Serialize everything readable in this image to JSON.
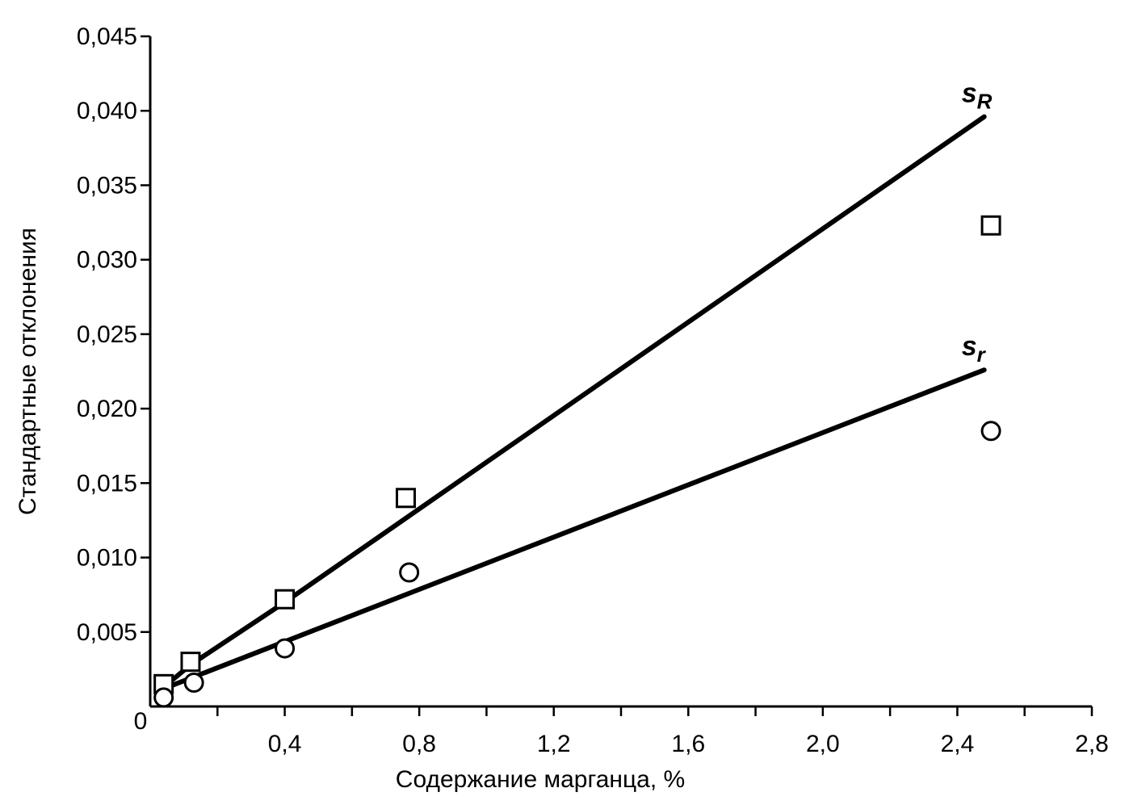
{
  "chart_data": {
    "type": "scatter",
    "title": "",
    "xlabel": "Содержание марганца, %",
    "ylabel": "Стандартные отклонения",
    "xlim": [
      0,
      2.8
    ],
    "ylim": [
      0,
      0.045
    ],
    "x_tick_labels": [
      {
        "value": 0,
        "label": "0"
      },
      {
        "value": 0.4,
        "label": "0,4"
      },
      {
        "value": 0.8,
        "label": "0,8"
      },
      {
        "value": 1.2,
        "label": "1,2"
      },
      {
        "value": 1.6,
        "label": "1,6"
      },
      {
        "value": 2.0,
        "label": "2,0"
      },
      {
        "value": 2.4,
        "label": "2,4"
      },
      {
        "value": 2.8,
        "label": "2,8"
      }
    ],
    "x_minor_ticks": [
      0.2,
      0.6,
      1.0,
      1.4,
      1.8,
      2.2,
      2.6
    ],
    "y_tick_labels": [
      {
        "value": 0.005,
        "label": "0,005"
      },
      {
        "value": 0.01,
        "label": "0,010"
      },
      {
        "value": 0.015,
        "label": "0,015"
      },
      {
        "value": 0.02,
        "label": "0,020"
      },
      {
        "value": 0.025,
        "label": "0,025"
      },
      {
        "value": 0.03,
        "label": "0,030"
      },
      {
        "value": 0.035,
        "label": "0,035"
      },
      {
        "value": 0.04,
        "label": "0,040"
      },
      {
        "value": 0.045,
        "label": "0,045"
      }
    ],
    "series": [
      {
        "name": "sR",
        "label_main": "s",
        "label_sub": "R",
        "marker": "square",
        "points": [
          {
            "x": 0.04,
            "y": 0.0015
          },
          {
            "x": 0.12,
            "y": 0.003
          },
          {
            "x": 0.4,
            "y": 0.0072
          },
          {
            "x": 0.76,
            "y": 0.014
          },
          {
            "x": 2.5,
            "y": 0.0323
          }
        ],
        "fit_line": [
          {
            "x": 0.04,
            "y": 0.0013
          },
          {
            "x": 0.12,
            "y": 0.0028
          },
          {
            "x": 0.4,
            "y": 0.007
          },
          {
            "x": 2.48,
            "y": 0.0396
          }
        ]
      },
      {
        "name": "sr",
        "label_main": "s",
        "label_sub": "r",
        "marker": "circle",
        "points": [
          {
            "x": 0.04,
            "y": 0.0006
          },
          {
            "x": 0.13,
            "y": 0.0016
          },
          {
            "x": 0.4,
            "y": 0.0039
          },
          {
            "x": 0.77,
            "y": 0.009
          },
          {
            "x": 2.5,
            "y": 0.0185
          }
        ],
        "fit_line": [
          {
            "x": 0.04,
            "y": 0.0012
          },
          {
            "x": 2.48,
            "y": 0.0226
          }
        ]
      }
    ],
    "legend": "inline labels at line ends",
    "grid": false
  }
}
